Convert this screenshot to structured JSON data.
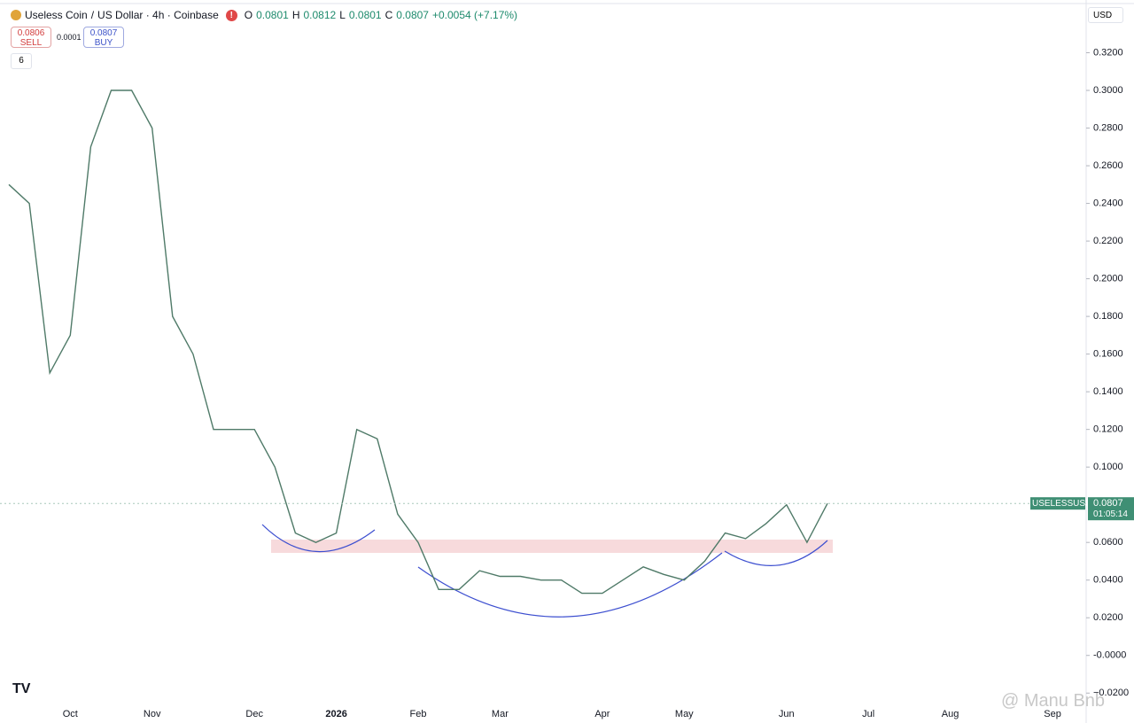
{
  "header": {
    "symbol": "Useless Coin",
    "separator": "/",
    "quote": "US Dollar · 4h · Coinbase",
    "open_label": "O",
    "open": "0.0801",
    "high_label": "H",
    "high": "0.0812",
    "low_label": "L",
    "low": "0.0801",
    "close_label": "C",
    "close": "0.0807",
    "change": "+0.0054 (+7.17%)",
    "sell_price": "0.0806",
    "sell": "SELL",
    "spread": "0.0001",
    "buy_price": "0.0807",
    "buy": "BUY",
    "indicators": "6",
    "currency": "USD"
  },
  "price_tag": {
    "symbol": "USELESSUSD",
    "price": "0.0807",
    "countdown": "01:05:14"
  },
  "watermark": "@ Manu Bnb",
  "chart_data": {
    "type": "line",
    "color": "#4f7a68",
    "grid": false,
    "categories": [
      null,
      null,
      null,
      "Oct",
      null,
      null,
      null,
      "Nov",
      null,
      null,
      null,
      null,
      "Dec",
      null,
      null,
      null,
      "2026",
      null,
      null,
      null,
      "Feb",
      null,
      null,
      null,
      "Mar",
      null,
      null,
      null,
      null,
      "Apr",
      null,
      null,
      null,
      "May",
      null,
      null,
      null,
      null,
      "Jun",
      null,
      null,
      null,
      "Jul",
      null,
      null,
      null,
      "Aug",
      null,
      null,
      null,
      null,
      "Sep"
    ],
    "values": [
      0.25,
      0.24,
      0.15,
      0.17,
      0.27,
      0.3,
      0.3,
      0.28,
      0.18,
      0.16,
      0.12,
      0.12,
      0.12,
      0.1,
      0.065,
      0.06,
      0.065,
      0.12,
      0.115,
      0.075,
      0.06,
      0.035,
      0.035,
      0.045,
      0.042,
      0.042,
      0.04,
      0.04,
      0.033,
      0.033,
      0.04,
      0.047,
      0.043,
      0.04,
      0.05,
      0.065,
      0.062,
      0.07,
      0.08,
      0.06,
      0.0807,
      null,
      null,
      null,
      null,
      null,
      null,
      null,
      null,
      null,
      null,
      null
    ],
    "ylim": [
      -0.026,
      0.348
    ],
    "yticks": [
      {
        "value": 0.32,
        "label": "0.3200"
      },
      {
        "value": 0.3,
        "label": "0.3000"
      },
      {
        "value": 0.28,
        "label": "0.2800"
      },
      {
        "value": 0.26,
        "label": "0.2600"
      },
      {
        "value": 0.24,
        "label": "0.2400"
      },
      {
        "value": 0.22,
        "label": "0.2200"
      },
      {
        "value": 0.2,
        "label": "0.2000"
      },
      {
        "value": 0.18,
        "label": "0.1800"
      },
      {
        "value": 0.16,
        "label": "0.1600"
      },
      {
        "value": 0.14,
        "label": "0.1400"
      },
      {
        "value": 0.12,
        "label": "0.1200"
      },
      {
        "value": 0.1,
        "label": "0.1000"
      },
      {
        "value": 0.06,
        "label": "0.0600"
      },
      {
        "value": 0.04,
        "label": "0.0400"
      },
      {
        "value": 0.02,
        "label": "0.0200"
      },
      {
        "value": 0,
        "label": "-0.0000"
      },
      {
        "value": -0.02,
        "label": "−0.0200"
      }
    ]
  }
}
